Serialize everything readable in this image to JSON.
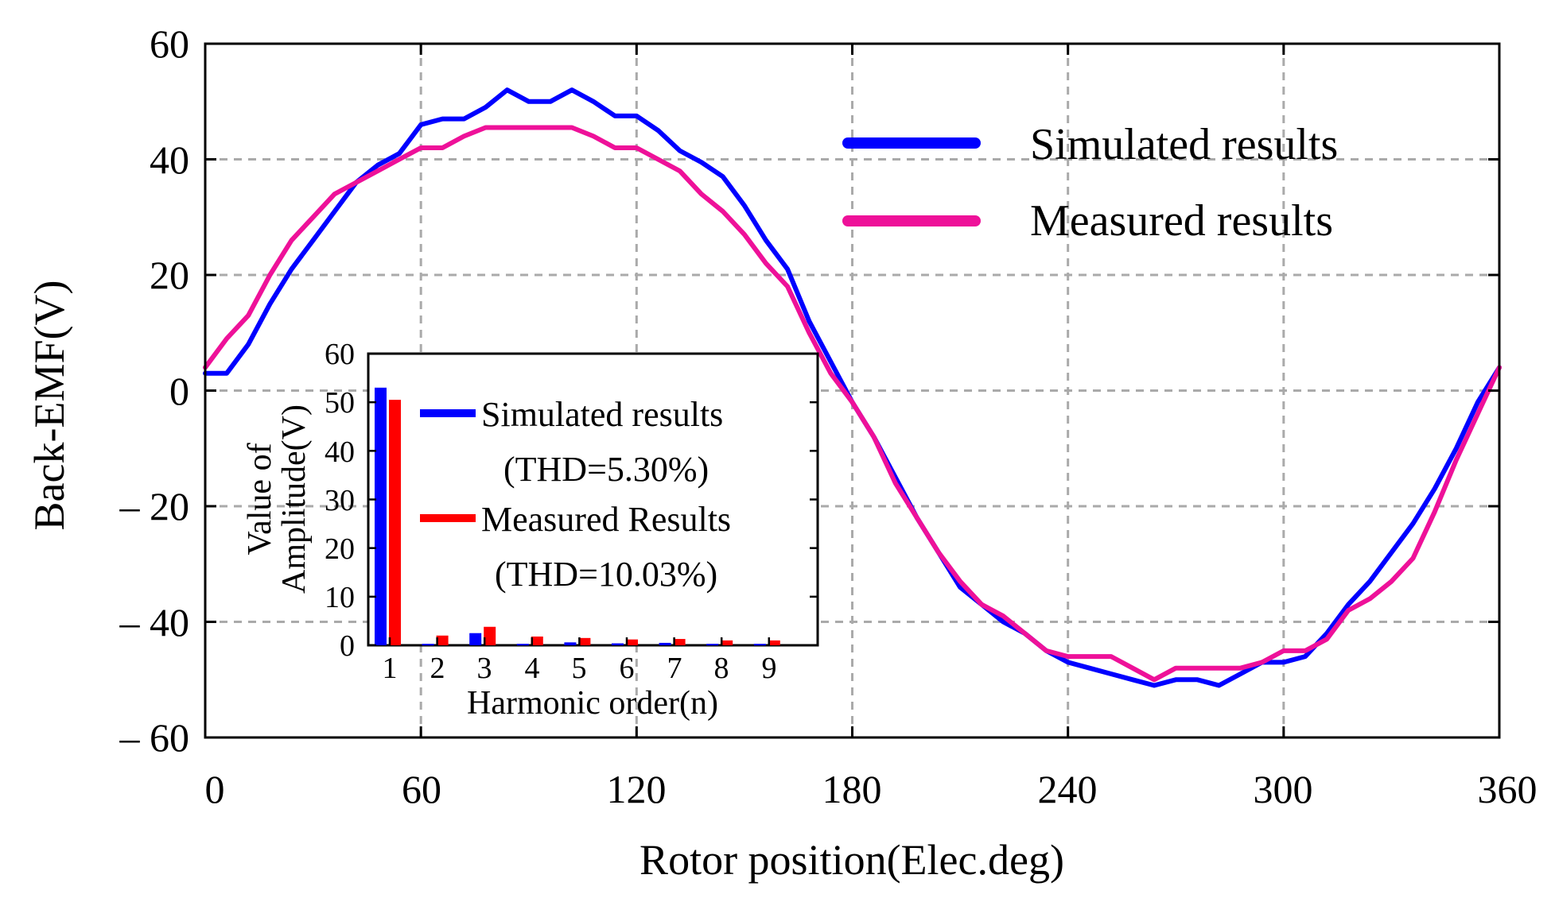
{
  "chart_data": [
    {
      "type": "line",
      "title": "",
      "xlabel": "Rotor position(Elec.deg)",
      "ylabel": "Back-EMF(V)",
      "xlim": [
        0,
        360
      ],
      "ylim": [
        -60,
        60
      ],
      "x_ticks": [
        0,
        60,
        120,
        180,
        240,
        300,
        360
      ],
      "x_tick_labels": [
        "0",
        "60",
        "120",
        "180",
        "240",
        "300",
        "360"
      ],
      "y_ticks": [
        60,
        40,
        20,
        0,
        -20,
        -40,
        -60
      ],
      "y_tick_labels": [
        "60",
        "40",
        "20",
        "0",
        "– 20",
        "– 40",
        "– 60"
      ],
      "grid": true,
      "legend_position": "top-right",
      "series": [
        {
          "name": "Simulated results",
          "color": "#0000ff",
          "x": [
            0,
            6,
            12,
            18,
            24,
            30,
            36,
            42,
            48,
            54,
            60,
            66,
            72,
            78,
            84,
            90,
            96,
            102,
            108,
            114,
            120,
            126,
            132,
            138,
            144,
            150,
            156,
            162,
            168,
            174,
            180,
            186,
            192,
            198,
            204,
            210,
            216,
            222,
            228,
            234,
            240,
            246,
            252,
            258,
            264,
            270,
            276,
            282,
            288,
            294,
            300,
            306,
            312,
            318,
            324,
            330,
            336,
            342,
            348,
            354,
            360
          ],
          "y": [
            3,
            3,
            8,
            15,
            21,
            26,
            31,
            36,
            39,
            41,
            46,
            47,
            47,
            49,
            52,
            50,
            50,
            52,
            50,
            47.5,
            47.5,
            45,
            41.5,
            39.5,
            37,
            32,
            26,
            21,
            12,
            5,
            -2,
            -8,
            -15,
            -22,
            -28,
            -34,
            -37,
            -40,
            -42,
            -45,
            -47,
            -48,
            -49,
            -50,
            -51,
            -50,
            -50,
            -51,
            -49,
            -47,
            -47,
            -46,
            -42,
            -37,
            -33,
            -28,
            -23,
            -17,
            -10,
            -2,
            4
          ]
        },
        {
          "name": "Measured results",
          "color": "#ee1199",
          "x": [
            0,
            6,
            12,
            18,
            24,
            30,
            36,
            42,
            48,
            54,
            60,
            66,
            72,
            78,
            84,
            90,
            96,
            102,
            108,
            114,
            120,
            126,
            132,
            138,
            144,
            150,
            156,
            162,
            168,
            174,
            180,
            186,
            192,
            198,
            204,
            210,
            216,
            222,
            228,
            234,
            240,
            246,
            252,
            258,
            264,
            270,
            276,
            282,
            288,
            294,
            300,
            306,
            312,
            318,
            324,
            330,
            336,
            342,
            348,
            354,
            360
          ],
          "y": [
            4,
            9,
            13,
            20,
            26,
            30,
            34,
            36,
            38,
            40,
            42,
            42,
            44,
            45.5,
            45.5,
            45.5,
            45.5,
            45.5,
            44,
            42,
            42,
            40,
            38,
            34,
            31,
            27,
            22,
            18,
            10,
            3,
            -2,
            -8,
            -16,
            -22,
            -28,
            -33,
            -37,
            -39,
            -42,
            -45,
            -46,
            -46,
            -46,
            -48,
            -50,
            -48,
            -48,
            -48,
            -48,
            -47,
            -45,
            -45,
            -43,
            -38,
            -36,
            -33,
            -29,
            -21,
            -12,
            -4,
            4
          ]
        }
      ]
    },
    {
      "type": "bar",
      "title": "",
      "xlabel": "Harmonic order(n)",
      "ylabel_line1": "Value of",
      "ylabel_line2": "Amplitude(V)",
      "ylim": [
        0,
        60
      ],
      "y_ticks": [
        0,
        10,
        20,
        30,
        40,
        50,
        60
      ],
      "categories": [
        "1",
        "2",
        "3",
        "4",
        "5",
        "6",
        "7",
        "8",
        "9"
      ],
      "legend_position": "top-right",
      "series": [
        {
          "name": "Simulated results",
          "note": "(THD=5.30%)",
          "color": "#0000ff",
          "values": [
            53,
            0.3,
            2.5,
            0.3,
            0.6,
            0.4,
            0.5,
            0.3,
            0.3
          ]
        },
        {
          "name": "Measured Results",
          "note": "(THD=10.03%)",
          "color": "#ff0000",
          "values": [
            50.5,
            2,
            3.8,
            1.8,
            1.5,
            1.2,
            1.3,
            1,
            1
          ]
        }
      ]
    }
  ]
}
